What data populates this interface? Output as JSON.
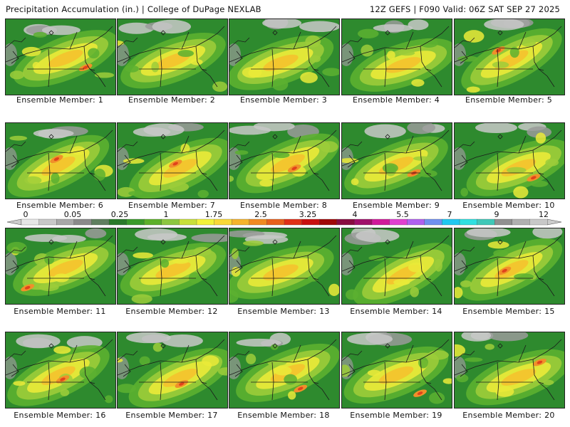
{
  "header": {
    "title_left": "Precipitation Accumulation (in.) | College of DuPage NEXLAB",
    "title_right": "12Z GEFS | F090 Valid: 06Z SAT SEP 27 2025"
  },
  "panels": [
    {
      "label": "Ensemble Member: 1"
    },
    {
      "label": "Ensemble Member: 2"
    },
    {
      "label": "Ensemble Member: 3"
    },
    {
      "label": "Ensemble Member: 4"
    },
    {
      "label": "Ensemble Member: 5"
    },
    {
      "label": "Ensemble Member: 6"
    },
    {
      "label": "Ensemble Member: 7"
    },
    {
      "label": "Ensemble Member: 8"
    },
    {
      "label": "Ensemble Member: 9"
    },
    {
      "label": "Ensemble Member: 10"
    },
    {
      "label": "Ensemble Member: 11"
    },
    {
      "label": "Ensemble Member: 12"
    },
    {
      "label": "Ensemble Member: 13"
    },
    {
      "label": "Ensemble Member: 14"
    },
    {
      "label": "Ensemble Member: 15"
    },
    {
      "label": "Ensemble Member: 16"
    },
    {
      "label": "Ensemble Member: 17"
    },
    {
      "label": "Ensemble Member: 18"
    },
    {
      "label": "Ensemble Member: 19"
    },
    {
      "label": "Ensemble Member: 20"
    }
  ],
  "legend": {
    "labels": [
      "0",
      "0.05",
      "0.25",
      "1",
      "1.75",
      "2.5",
      "3.25",
      "4",
      "5.5",
      "7",
      "9",
      "12"
    ],
    "colors": [
      "#e6e6e6",
      "#c8c8c8",
      "#a8a8a8",
      "#8a8a8a",
      "#5f7f5f",
      "#2a7a2a",
      "#3a9a2a",
      "#5db02a",
      "#8cc63f",
      "#c8e03a",
      "#f2f23a",
      "#f8d838",
      "#f5b42c",
      "#f08a22",
      "#e8601c",
      "#e03018",
      "#c81010",
      "#a00808",
      "#880c40",
      "#a0106a",
      "#d01a9a",
      "#e040d0",
      "#b060f0",
      "#7090f0",
      "#20c8f0",
      "#30e0e0",
      "#40c8b8",
      "#909090",
      "#b0b0b0",
      "#c8c8c8"
    ],
    "arrow_color": "#cccccc"
  },
  "map_colors": {
    "bg_green": "#2e8a2e",
    "light_green": "#5cb030",
    "lime": "#9ccc3a",
    "yellow": "#eaea38",
    "gold": "#f5c22e",
    "orange": "#f0902a",
    "red": "#e0421c",
    "gray": "#9a9a9a",
    "light_gray": "#c8c8c8",
    "border_line": "#1a1a1a"
  }
}
